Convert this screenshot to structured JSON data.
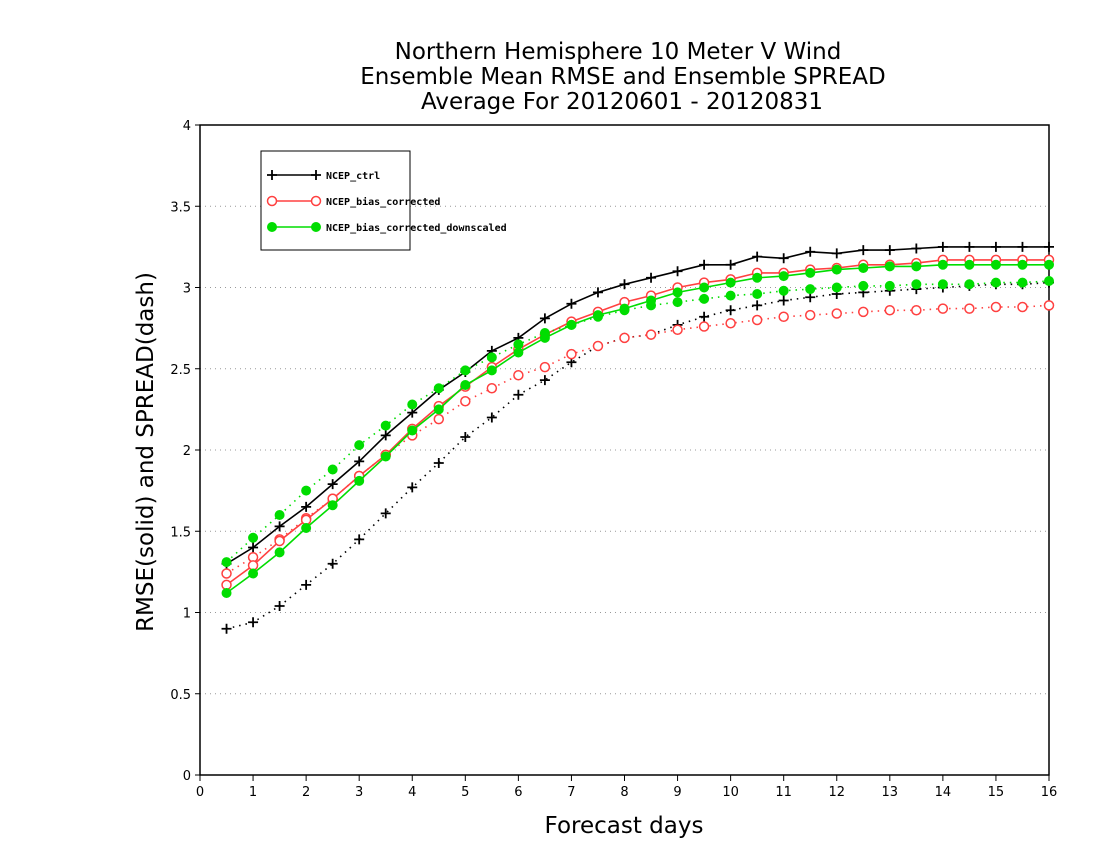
{
  "chart_data": {
    "type": "line",
    "title": [
      "Northern Hemisphere 10 Meter V Wind",
      "Ensemble Mean RMSE and Ensemble SPREAD",
      "Average For 20120601 - 20120831"
    ],
    "xlabel": "Forecast days",
    "ylabel": "RMSE(solid) and SPREAD(dash)",
    "xlim": [
      0,
      16
    ],
    "ylim": [
      0,
      4
    ],
    "x_ticks": [
      "0",
      "1",
      "2",
      "3",
      "4",
      "5",
      "6",
      "7",
      "8",
      "9",
      "10",
      "11",
      "12",
      "13",
      "14",
      "15",
      "16"
    ],
    "y_ticks": [
      "0",
      "0.5",
      "1",
      "1.5",
      "2",
      "2.5",
      "3",
      "3.5",
      "4"
    ],
    "grid": "horizontal dotted",
    "legend_position": "top-left",
    "x": [
      0.5,
      1,
      1.5,
      2,
      2.5,
      3,
      3.5,
      4,
      4.5,
      5,
      5.5,
      6,
      6.5,
      7,
      7.5,
      8,
      8.5,
      9,
      9.5,
      10,
      10.5,
      11,
      11.5,
      12,
      12.5,
      13,
      13.5,
      14,
      14.5,
      15,
      15.5,
      16
    ],
    "series": [
      {
        "name": "NCEP_ctrl",
        "color": "#000000",
        "marker": "plus",
        "rmse": [
          1.3,
          1.4,
          1.53,
          1.65,
          1.79,
          1.93,
          2.09,
          2.23,
          2.37,
          2.48,
          2.61,
          2.69,
          2.81,
          2.9,
          2.97,
          3.02,
          3.06,
          3.1,
          3.14,
          3.14,
          3.19,
          3.18,
          3.22,
          3.21,
          3.23,
          3.23,
          3.24,
          3.25,
          3.25,
          3.25,
          3.25,
          3.25
        ],
        "spread": [
          0.9,
          0.94,
          1.04,
          1.17,
          1.3,
          1.45,
          1.61,
          1.77,
          1.92,
          2.08,
          2.2,
          2.34,
          2.43,
          2.54,
          2.64,
          2.69,
          2.71,
          2.77,
          2.82,
          2.86,
          2.89,
          2.92,
          2.94,
          2.96,
          2.97,
          2.98,
          2.99,
          3.0,
          3.01,
          3.02,
          3.02,
          3.03
        ]
      },
      {
        "name": "NCEP_bias_corrected",
        "color": "#ff4040",
        "marker": "circle-open",
        "rmse": [
          1.17,
          1.29,
          1.44,
          1.57,
          1.7,
          1.84,
          1.97,
          2.13,
          2.27,
          2.39,
          2.51,
          2.62,
          2.71,
          2.79,
          2.85,
          2.91,
          2.95,
          3.0,
          3.03,
          3.05,
          3.09,
          3.09,
          3.11,
          3.12,
          3.14,
          3.14,
          3.15,
          3.17,
          3.17,
          3.17,
          3.17,
          3.17
        ],
        "spread": [
          1.24,
          1.34,
          1.45,
          1.58,
          1.7,
          1.84,
          1.97,
          2.09,
          2.19,
          2.3,
          2.38,
          2.46,
          2.51,
          2.59,
          2.64,
          2.69,
          2.71,
          2.74,
          2.76,
          2.78,
          2.8,
          2.82,
          2.83,
          2.84,
          2.85,
          2.86,
          2.86,
          2.87,
          2.87,
          2.88,
          2.88,
          2.89
        ]
      },
      {
        "name": "NCEP_bias_corrected_downscaled",
        "color": "#00dd00",
        "marker": "circle-filled",
        "rmse": [
          1.12,
          1.24,
          1.37,
          1.52,
          1.66,
          1.81,
          1.96,
          2.12,
          2.25,
          2.4,
          2.49,
          2.6,
          2.69,
          2.77,
          2.83,
          2.87,
          2.92,
          2.97,
          3.0,
          3.03,
          3.06,
          3.07,
          3.09,
          3.11,
          3.12,
          3.13,
          3.13,
          3.14,
          3.14,
          3.14,
          3.14,
          3.14
        ],
        "spread": [
          1.31,
          1.46,
          1.6,
          1.75,
          1.88,
          2.03,
          2.15,
          2.28,
          2.38,
          2.49,
          2.57,
          2.65,
          2.72,
          2.77,
          2.82,
          2.86,
          2.89,
          2.91,
          2.93,
          2.95,
          2.96,
          2.98,
          2.99,
          3.0,
          3.01,
          3.01,
          3.02,
          3.02,
          3.02,
          3.03,
          3.03,
          3.04
        ]
      }
    ]
  }
}
